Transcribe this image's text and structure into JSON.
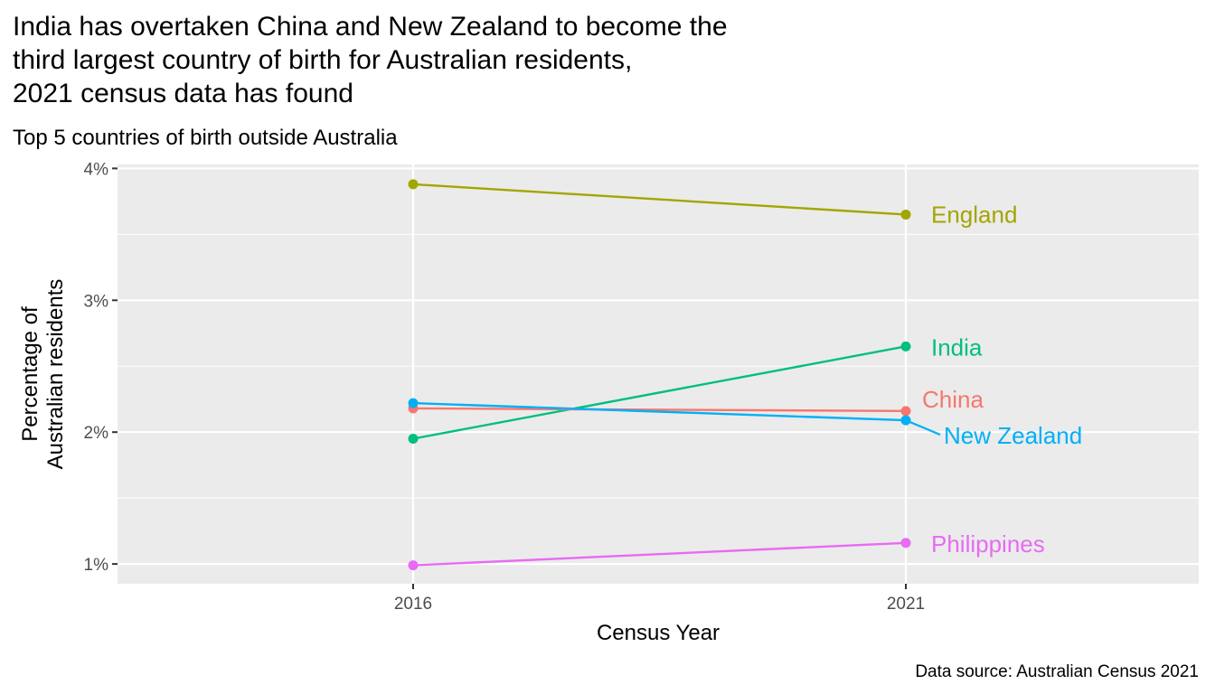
{
  "chart_data": {
    "type": "line",
    "title_lines": [
      "India has overtaken China and New Zealand to become the",
      "third largest country of birth for Australian residents,",
      "2021 census data has found"
    ],
    "subtitle": "Top 5 countries of birth outside Australia",
    "xlabel": "Census Year",
    "ylabel_lines": [
      "Percentage of",
      "Australian residents"
    ],
    "caption": "Data source: Australian Census 2021",
    "x": [
      "2016",
      "2021"
    ],
    "y_ticks": [
      "1%",
      "2%",
      "3%",
      "4%"
    ],
    "ylim": [
      0.85,
      4.03
    ],
    "y_tick_values": [
      1,
      2,
      3,
      4
    ],
    "y_minor_values": [
      1.5,
      2.5,
      3.5
    ],
    "grid": true,
    "legend": "direct labels at line ends",
    "series": [
      {
        "name": "England",
        "values": [
          3.88,
          3.65
        ],
        "color": "#A3A500"
      },
      {
        "name": "India",
        "values": [
          1.95,
          2.65
        ],
        "color": "#00BF7D"
      },
      {
        "name": "China",
        "values": [
          2.18,
          2.16
        ],
        "color": "#F8766D"
      },
      {
        "name": "New Zealand",
        "values": [
          2.22,
          2.09
        ],
        "color": "#00B0F6"
      },
      {
        "name": "Philippines",
        "values": [
          0.99,
          1.16
        ],
        "color": "#E76BF3"
      }
    ]
  }
}
